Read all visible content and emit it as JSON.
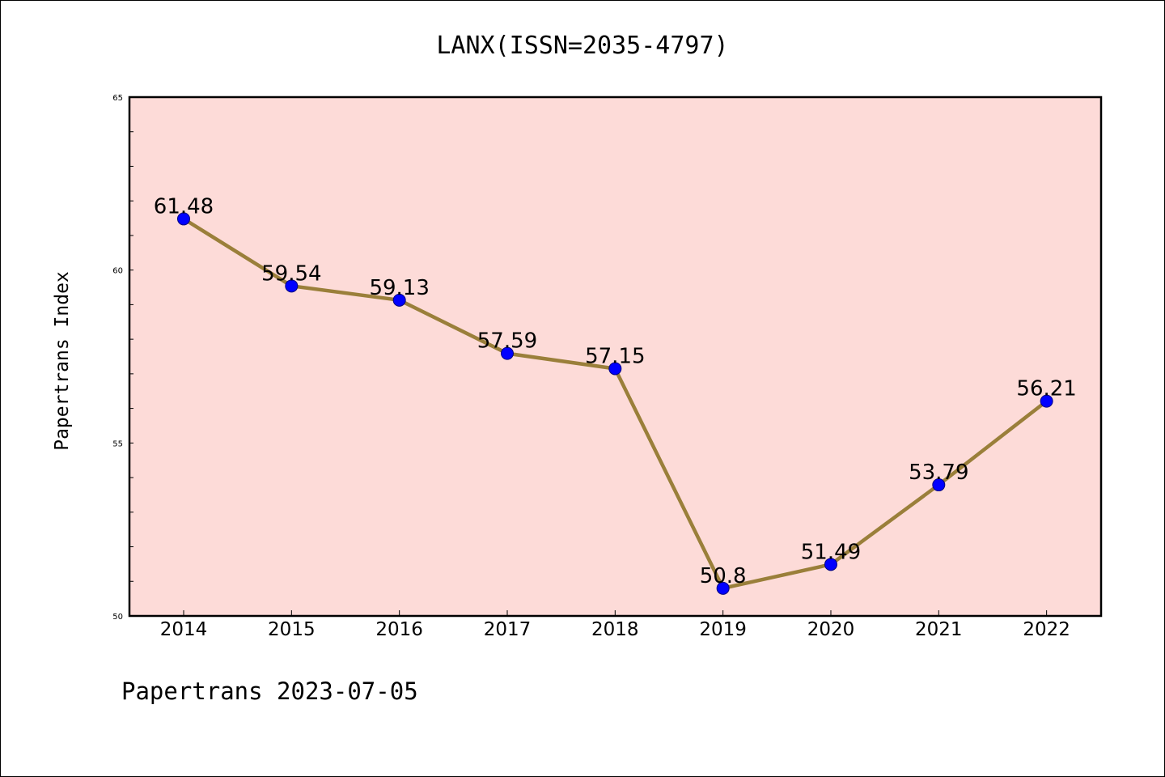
{
  "chart_data": {
    "type": "line",
    "title": "LANX(ISSN=2035-4797)",
    "ylabel": "Papertrans Index",
    "xlabel": "",
    "footer": "Papertrans 2023-07-05",
    "categories": [
      "2014",
      "2015",
      "2016",
      "2017",
      "2018",
      "2019",
      "2020",
      "2021",
      "2022"
    ],
    "values": [
      61.48,
      59.54,
      59.13,
      57.59,
      57.15,
      50.8,
      51.49,
      53.79,
      56.21
    ],
    "data_labels": [
      "61.48",
      "59.54",
      "59.13",
      "57.59",
      "57.15",
      "50.8",
      "51.49",
      "53.79",
      "56.21"
    ],
    "ylim": [
      50,
      65
    ],
    "yticks": [
      50,
      55,
      60,
      65
    ],
    "ytick_labels": [
      "50",
      "55",
      "60",
      "65"
    ],
    "grid": false,
    "colors": {
      "plot_background": "#fddbd8",
      "line": "#9a7f3a",
      "marker": "#0000ff",
      "marker_edge": "#000080"
    }
  }
}
